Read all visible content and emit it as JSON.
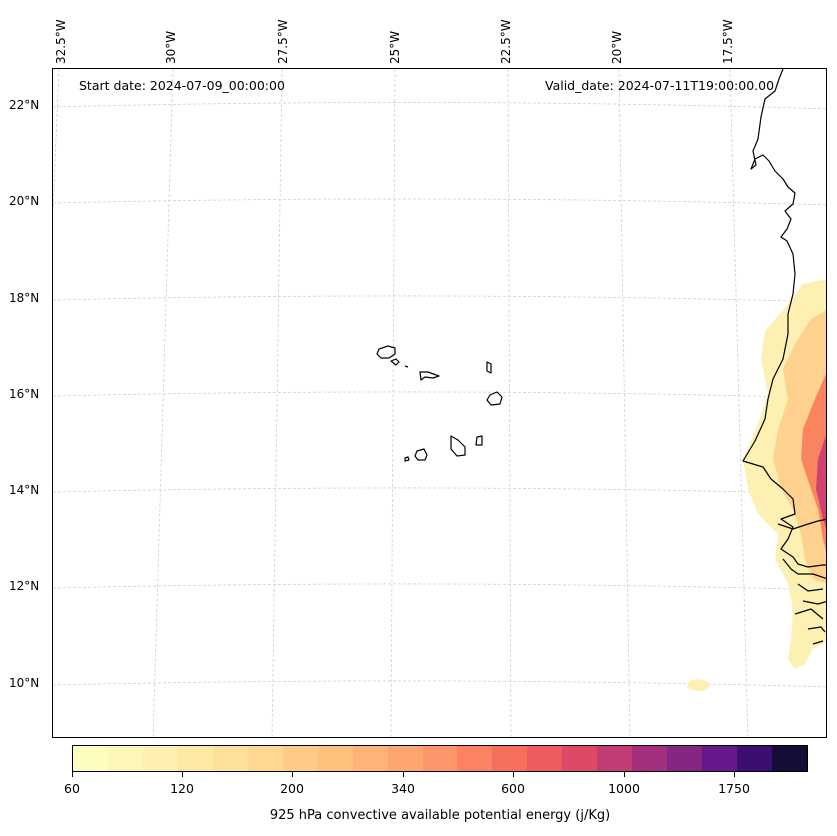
{
  "map": {
    "start_date": "Start date: 2024-07-09_00:00:00",
    "valid_date": "Valid_date: 2024-07-11T19:00:00.00",
    "longitude_labels": [
      "32.5°W",
      "30°W",
      "27.5°W",
      "25°W",
      "22.5°W",
      "20°W",
      "17.5°W"
    ],
    "latitude_labels": [
      "22°N",
      "20°N",
      "18°N",
      "16°N",
      "14°N",
      "12°N",
      "10°N"
    ],
    "coastline_color": "#000000",
    "gridline_color": "#cfcfcf"
  },
  "colorbar": {
    "label": "925 hPa convective available potential energy (j/Kg)",
    "tick_labels": [
      "60",
      "120",
      "200",
      "340",
      "600",
      "1000",
      "1750"
    ],
    "colors": [
      "#fcfdbf",
      "#fcf7b8",
      "#fdf0b0",
      "#fde8a4",
      "#fde09a",
      "#fed791",
      "#fecb86",
      "#fec07d",
      "#feb477",
      "#fea670",
      "#fd956b",
      "#fb8263",
      "#f66f5c",
      "#ee5b5e",
      "#de4968",
      "#c13b75",
      "#a3307e",
      "#852681",
      "#66198a",
      "#3b0f70",
      "#140e36"
    ]
  }
}
